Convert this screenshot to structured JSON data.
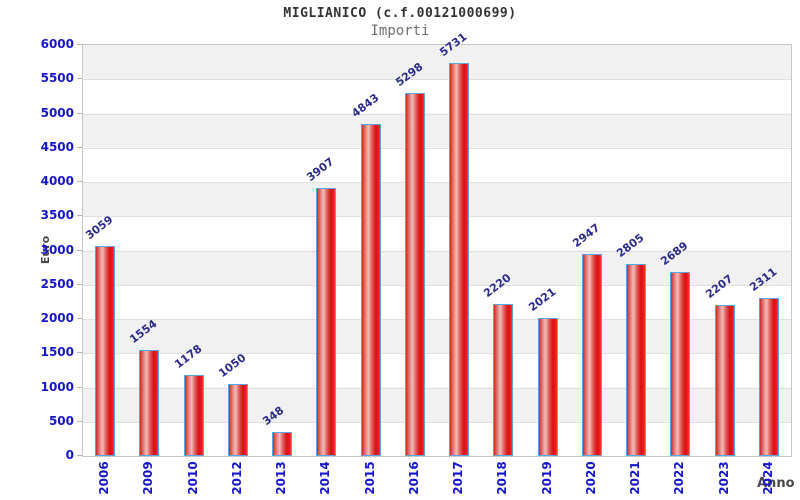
{
  "header": {
    "title": "MIGLIANICO (c.f.00121000699)",
    "subtitle": "Importi"
  },
  "chart_data": {
    "type": "bar",
    "title": "MIGLIANICO (c.f.00121000699)",
    "subtitle": "Importi",
    "categories": [
      "2006",
      "2009",
      "2010",
      "2012",
      "2013",
      "2014",
      "2015",
      "2016",
      "2017",
      "2018",
      "2019",
      "2020",
      "2021",
      "2022",
      "2023",
      "2024"
    ],
    "values": [
      3059,
      1554,
      1178,
      1050,
      348,
      3907,
      4843,
      5298,
      5731,
      2220,
      2021,
      2947,
      2805,
      2689,
      2207,
      2311
    ],
    "xlabel": "Anno",
    "ylabel": "Euro",
    "ylim": [
      0,
      6000
    ],
    "ytick_step": 500,
    "ytick_labels": [
      "0",
      "500",
      "1000",
      "1500",
      "2000",
      "2500",
      "3000",
      "3500",
      "4000",
      "4500",
      "5000",
      "5500",
      "6000"
    ],
    "legend": "none",
    "grid": "horizontal bands alternating gray/white with gridlines every 500",
    "colors": {
      "bar_fill": "#e02020",
      "bar_highlight": "#f2bdbb",
      "bar_border": "#58a7e0",
      "value_label": "#2b2b8c",
      "tick_label": "#1515cc",
      "band": "#f1f1f1",
      "gridline": "#e0e0e0",
      "plot_border": "#c6c6c6",
      "title_text": "#333333",
      "subtitle_text": "#707070",
      "axis_label_text": "#4a4a4a"
    }
  }
}
